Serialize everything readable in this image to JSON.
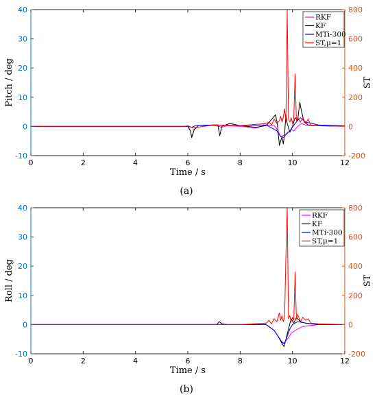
{
  "chart_data": [
    {
      "type": "line",
      "caption": "(a)",
      "xlabel": "Time / s",
      "ylabel": "Pitch / deg",
      "y2label": "ST",
      "xlim": [
        0,
        12
      ],
      "ylim": [
        -10,
        40
      ],
      "y2lim": [
        -200,
        800
      ],
      "x_ticks": [
        0,
        2,
        4,
        6,
        8,
        10,
        12
      ],
      "y_ticks": [
        -10,
        0,
        10,
        20,
        30,
        40
      ],
      "y2_ticks": [
        -200,
        0,
        200,
        400,
        600,
        800
      ],
      "grid": false,
      "legend_position": "top-right",
      "left_axis_color": "#0072BD",
      "right_axis_color": "#D95319",
      "series": [
        {
          "name": "RKF",
          "axis": "left",
          "color": "#FF00FF",
          "x": [
            0,
            6.0,
            6.1,
            6.15,
            6.25,
            6.4,
            7.0,
            7.2,
            7.3,
            7.5,
            8.0,
            8.6,
            9.0,
            9.3,
            9.45,
            9.55,
            9.65,
            9.75,
            9.85,
            9.95,
            10.05,
            10.2,
            10.35,
            10.5,
            10.7,
            11.0,
            12.0
          ],
          "y": [
            0,
            0,
            -1.5,
            -3.5,
            -1,
            0.3,
            0.3,
            0,
            -0.3,
            0.2,
            0,
            -0.5,
            0.5,
            0.3,
            -1.5,
            -3.5,
            -3.8,
            -3,
            -2,
            -1,
            -1.5,
            0,
            1,
            0.5,
            0.3,
            0.2,
            0.1
          ]
        },
        {
          "name": "KF",
          "axis": "left",
          "color": "#000000",
          "x": [
            0,
            6.0,
            6.1,
            6.15,
            6.25,
            6.4,
            7.0,
            7.15,
            7.22,
            7.3,
            7.6,
            8.0,
            8.6,
            9.0,
            9.35,
            9.42,
            9.5,
            9.55,
            9.6,
            9.65,
            9.7,
            9.75,
            9.8,
            9.9,
            10.0,
            10.1,
            10.2,
            10.28,
            10.35,
            10.45,
            10.6,
            11.0,
            12.0
          ],
          "y": [
            0,
            0,
            -1.5,
            -3.8,
            -1,
            0.3,
            0.5,
            0.5,
            -3.2,
            0,
            1,
            0.3,
            -0.3,
            0.3,
            4,
            1,
            -6.5,
            -5,
            -3.5,
            -6,
            -2.5,
            4,
            1,
            -2,
            0,
            3,
            2,
            8.3,
            5,
            1.5,
            0.5,
            0.2,
            0.1
          ]
        },
        {
          "name": "MTi-300",
          "axis": "left",
          "color": "#0000FF",
          "x": [
            0,
            6.0,
            6.15,
            6.3,
            7.0,
            8.0,
            9.0,
            9.4,
            9.55,
            9.7,
            9.9,
            10.1,
            10.3,
            10.5,
            11.0,
            12.0
          ],
          "y": [
            0,
            0,
            -0.3,
            0.3,
            0.5,
            0.3,
            0.5,
            -1.5,
            -3.5,
            -3,
            -1.5,
            1,
            3,
            1.5,
            0.5,
            0.2
          ]
        },
        {
          "name": "ST,μ=1",
          "axis": "right",
          "color": "#FF0000",
          "x": [
            0,
            5.9,
            6.0,
            6.2,
            7.0,
            8.0,
            9.0,
            9.1,
            9.2,
            9.3,
            9.4,
            9.5,
            9.55,
            9.6,
            9.65,
            9.7,
            9.75,
            9.8,
            9.85,
            9.9,
            9.95,
            10.0,
            10.05,
            10.1,
            10.15,
            10.2,
            10.3,
            10.4,
            10.5,
            10.6,
            10.7,
            11.0,
            12.0
          ],
          "y": [
            0,
            0,
            5,
            -10,
            10,
            5,
            20,
            30,
            10,
            50,
            20,
            40,
            70,
            30,
            60,
            120,
            30,
            800,
            50,
            30,
            60,
            20,
            60,
            360,
            40,
            60,
            30,
            60,
            20,
            50,
            10,
            5,
            0
          ]
        }
      ]
    },
    {
      "type": "line",
      "caption": "(b)",
      "xlabel": "Time / s",
      "ylabel": "Roll / deg",
      "y2label": "ST",
      "xlim": [
        0,
        12
      ],
      "ylim": [
        -10,
        40
      ],
      "y2lim": [
        -200,
        800
      ],
      "x_ticks": [
        0,
        2,
        4,
        6,
        8,
        10,
        12
      ],
      "y_ticks": [
        -10,
        0,
        10,
        20,
        30,
        40
      ],
      "y2_ticks": [
        -200,
        0,
        200,
        400,
        600,
        800
      ],
      "grid": false,
      "legend_position": "top-right",
      "left_axis_color": "#0072BD",
      "right_axis_color": "#D95319",
      "series": [
        {
          "name": "RKF",
          "axis": "left",
          "color": "#FF00FF",
          "x": [
            0,
            8.0,
            9.0,
            9.3,
            9.45,
            9.55,
            9.65,
            9.75,
            9.85,
            9.95,
            10.1,
            10.3,
            10.5,
            11.0,
            12.0
          ],
          "y": [
            0,
            0,
            0,
            -2,
            -4,
            -5.5,
            -6.5,
            -5.5,
            -4.5,
            -3,
            -2,
            -1,
            -0.5,
            0,
            0
          ]
        },
        {
          "name": "KF",
          "axis": "left",
          "color": "#000000",
          "x": [
            0,
            7.1,
            7.2,
            7.3,
            7.5,
            8.0,
            9.0,
            9.3,
            9.45,
            9.6,
            9.68,
            9.75,
            9.85,
            9.95,
            10.05,
            10.15,
            10.3,
            10.5,
            11.0,
            12.0
          ],
          "y": [
            0,
            0,
            1,
            0.3,
            0,
            0,
            0,
            -2,
            -4,
            -6.5,
            -7.5,
            -5,
            -1.5,
            2,
            0.5,
            2.5,
            1,
            0.5,
            0,
            0
          ]
        },
        {
          "name": "MTi-300",
          "axis": "left",
          "color": "#0000FF",
          "x": [
            0,
            8.0,
            9.0,
            9.3,
            9.45,
            9.6,
            9.7,
            9.8,
            9.9,
            10.0,
            10.2,
            10.5,
            11.0,
            12.0
          ],
          "y": [
            0,
            0,
            0,
            -2,
            -4,
            -6,
            -6.5,
            -4,
            -1.5,
            0,
            1,
            0.5,
            0,
            0
          ]
        },
        {
          "name": "ST,μ=1",
          "axis": "right",
          "color": "#FF0000",
          "x": [
            0,
            8.0,
            9.0,
            9.1,
            9.2,
            9.3,
            9.4,
            9.5,
            9.55,
            9.6,
            9.65,
            9.7,
            9.75,
            9.8,
            9.85,
            9.9,
            9.95,
            10.0,
            10.05,
            10.1,
            10.15,
            10.2,
            10.3,
            10.4,
            10.5,
            10.6,
            10.7,
            11.0,
            12.0
          ],
          "y": [
            0,
            0,
            10,
            30,
            5,
            40,
            20,
            80,
            30,
            60,
            20,
            50,
            470,
            800,
            40,
            60,
            20,
            50,
            30,
            360,
            40,
            70,
            20,
            50,
            30,
            40,
            10,
            5,
            0
          ]
        }
      ]
    }
  ]
}
